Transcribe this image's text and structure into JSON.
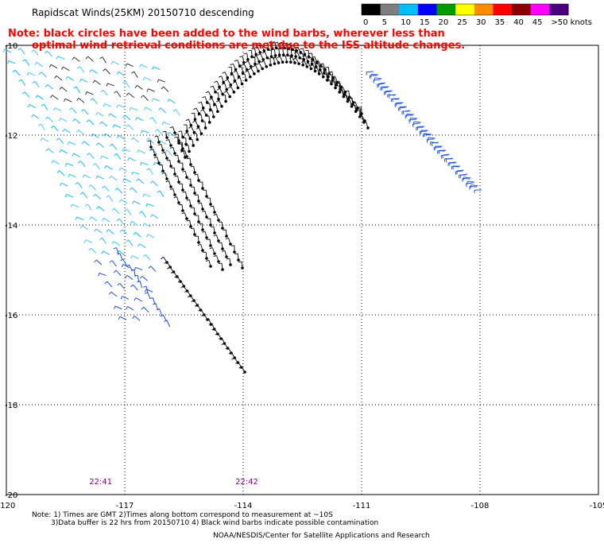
{
  "title": "Rapidscat Winds(25KM) 20150710 descending",
  "note": {
    "line1": "Note: black circles have been added to the wind barbs, wherever less than",
    "line2": "optimal wind retrieval conditions are met due to the ISS altitude changes."
  },
  "colorbar": {
    "labels": [
      "0",
      "5",
      "10",
      "15",
      "20",
      "25",
      "30",
      "35",
      "40",
      "45",
      ">50 knots"
    ],
    "colors": [
      "#000000",
      "#7f7f7f",
      "#00bfff",
      "#0000ff",
      "#009900",
      "#ffff00",
      "#ff8c00",
      "#ff0000",
      "#8b0000",
      "#ff00ff",
      "#4b0082"
    ]
  },
  "axes": {
    "lon_labels": [
      "-120",
      "-117",
      "-114",
      "-111",
      "-108",
      "-105"
    ],
    "lat_labels": [
      "-10",
      "-12",
      "-14",
      "-16",
      "-18",
      "-20"
    ]
  },
  "times": [
    {
      "label": "22:41",
      "lon": -117.9
    },
    {
      "label": "22:42",
      "lon": -114.2
    }
  ],
  "footer": {
    "line1": "Note: 1) Times are GMT 2)Times along bottom correspond to measurement at ~10S",
    "line2": "3)Data buffer is 22 hrs from 20150710 4) Black wind barbs indicate possible contamination",
    "line3": "NOAA/NESDIS/Center for Satellite Applications and Research"
  }
}
